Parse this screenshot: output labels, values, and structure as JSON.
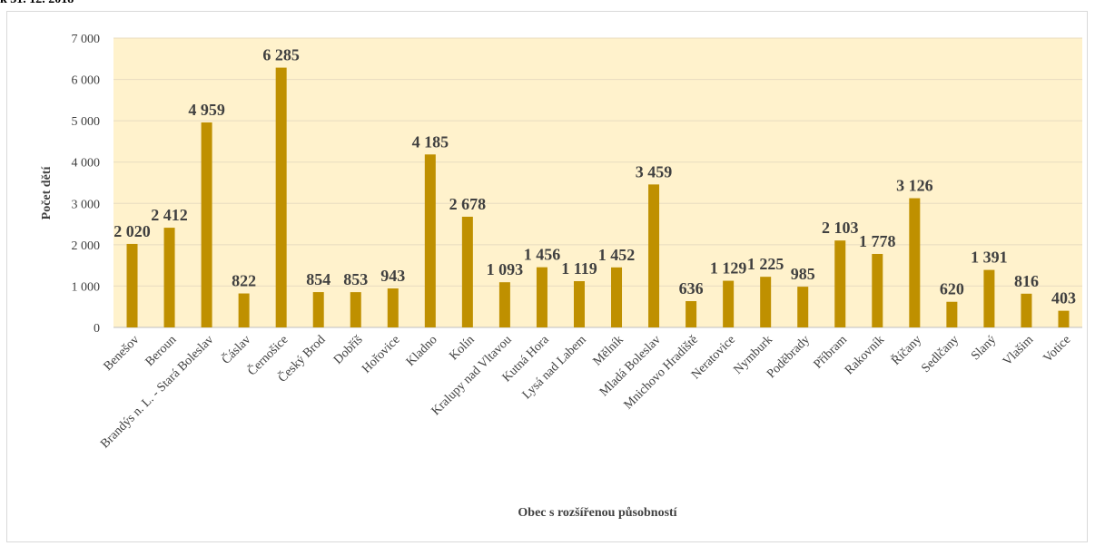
{
  "header_fragment": "k 31. 12. 2018",
  "colors": {
    "bar": "#bf9000",
    "plot_bg": "#fff2cc",
    "grid": "#e8dcc0",
    "text": "#404040"
  },
  "chart_data": {
    "type": "bar",
    "xlabel": "Obec s rozšířenou působností",
    "ylabel": "Počet dětí",
    "ylim": [
      0,
      7000
    ],
    "y_ticks": [
      0,
      1000,
      2000,
      3000,
      4000,
      5000,
      6000,
      7000
    ],
    "y_tick_labels": [
      "0",
      "1 000",
      "2 000",
      "3 000",
      "4 000",
      "5 000",
      "6 000",
      "7 000"
    ],
    "grid": true,
    "legend": "none",
    "categories": [
      "Benešov",
      "Beroun",
      "Brandýs n. L. - Stará Boleslav",
      "Čáslav",
      "Černošice",
      "Český Brod",
      "Dobříš",
      "Hořovice",
      "Kladno",
      "Kolín",
      "Kralupy nad Vltavou",
      "Kutná Hora",
      "Lysá nad Labem",
      "Mělník",
      "Mladá Boleslav",
      "Mnichovo Hradiště",
      "Neratovice",
      "Nymburk",
      "Poděbrady",
      "Příbram",
      "Rakovník",
      "Říčany",
      "Sedlčany",
      "Slaný",
      "Vlašim",
      "Votice"
    ],
    "values": [
      2020,
      2412,
      4959,
      822,
      6285,
      854,
      853,
      943,
      4185,
      2678,
      1093,
      1456,
      1119,
      1452,
      3459,
      636,
      1129,
      1225,
      985,
      2103,
      1778,
      3126,
      620,
      1391,
      816,
      403
    ],
    "value_labels": [
      "2 020",
      "2 412",
      "4 959",
      "822",
      "6 285",
      "854",
      "853",
      "943",
      "4 185",
      "2 678",
      "1 093",
      "1 456",
      "1 119",
      "1 452",
      "3 459",
      "636",
      "1 129",
      "1 225",
      "985",
      "2 103",
      "1 778",
      "3 126",
      "620",
      "1 391",
      "816",
      "403"
    ]
  }
}
